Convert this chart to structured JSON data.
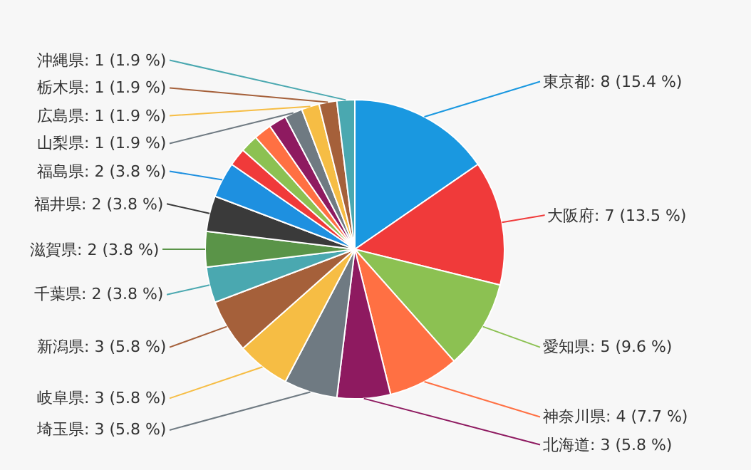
{
  "chart_data": {
    "type": "pie",
    "categories": [
      "東京都",
      "大阪府",
      "愛知県",
      "神奈川県",
      "北海道",
      "埼玉県",
      "岐阜県",
      "新潟県",
      "千葉県",
      "滋賀県",
      "福井県",
      "福島県",
      null,
      null,
      null,
      null,
      "山梨県",
      "広島県",
      "栃木県",
      "沖縄県"
    ],
    "values": [
      8,
      7,
      5,
      4,
      3,
      3,
      3,
      3,
      2,
      2,
      2,
      2,
      1,
      1,
      1,
      1,
      1,
      1,
      1,
      1
    ],
    "value_labels": [
      "8 (15.4 %)",
      "7 (13.5 %)",
      "5 (9.6 %)",
      "4 (7.7 %)",
      "3 (5.8 %)",
      "3 (5.8 %)",
      "3 (5.8 %)",
      "3 (5.8 %)",
      "2 (3.8 %)",
      "2 (3.8 %)",
      "2 (3.8 %)",
      "2 (3.8 %)",
      null,
      null,
      null,
      null,
      "1 (1.9 %)",
      "1 (1.9 %)",
      "1 (1.9 %)",
      "1 (1.9 %)"
    ],
    "colors": [
      "#1a98e0",
      "#f03a3a",
      "#8cc152",
      "#ff7043",
      "#8e1a60",
      "#6f7a82",
      "#f6bd44",
      "#a5603a",
      "#4aa8b0",
      "#5a9448",
      "#3a3a3a",
      "#1e90e0",
      "#f03a3a",
      "#8cc152",
      "#ff7043",
      "#8e1a60",
      "#6f7a82",
      "#f6bd44",
      "#a5603a",
      "#4aa8b0"
    ]
  }
}
